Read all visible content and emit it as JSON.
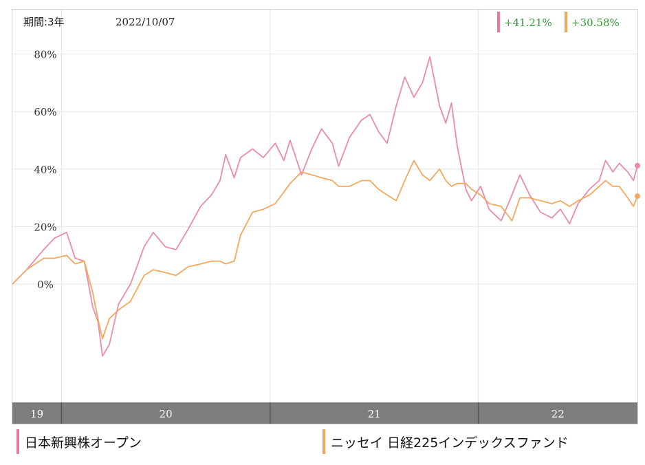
{
  "header": {
    "period_label": "期間:3年",
    "date": "2022/10/07"
  },
  "badges": [
    {
      "text": "+41.21%",
      "color": "#e8789b"
    },
    {
      "text": "+30.58%",
      "color": "#f2a65a"
    }
  ],
  "colors": {
    "series_pink": "#ee8aa9",
    "series_orange": "#f5a85c",
    "badge_text": "#2e9e2e",
    "axis_band": "#7d7d7d"
  },
  "legend": [
    {
      "label": "日本新興株オープン",
      "color": "#e8789b"
    },
    {
      "label": "ニッセイ 日経225インデックスファンド",
      "color": "#f2a65a"
    }
  ],
  "chart_data": {
    "type": "line",
    "title": "",
    "xlabel": "",
    "ylabel": "",
    "x_start": "2019-10-07",
    "x_end": "2022-10-07",
    "x_tick_labels": [
      "19",
      "20",
      "21",
      "22"
    ],
    "y_ticks": [
      0,
      20,
      40,
      60,
      80
    ],
    "ylim": [
      -35,
      95
    ],
    "grid": true,
    "series": [
      {
        "name": "日本新興株オープン",
        "color": "#ee8aa9",
        "final_change": "+41.21%",
        "points": [
          [
            "2019-10-07",
            0
          ],
          [
            "2019-11-01",
            5
          ],
          [
            "2019-12-01",
            12
          ],
          [
            "2019-12-20",
            16
          ],
          [
            "2020-01-10",
            18
          ],
          [
            "2020-01-25",
            9
          ],
          [
            "2020-02-10",
            8
          ],
          [
            "2020-02-25",
            -8
          ],
          [
            "2020-03-05",
            -13
          ],
          [
            "2020-03-13",
            -25
          ],
          [
            "2020-03-25",
            -21
          ],
          [
            "2020-04-10",
            -7
          ],
          [
            "2020-05-01",
            0
          ],
          [
            "2020-05-25",
            13
          ],
          [
            "2020-06-10",
            18
          ],
          [
            "2020-07-01",
            13
          ],
          [
            "2020-07-20",
            12
          ],
          [
            "2020-08-10",
            19
          ],
          [
            "2020-09-01",
            27
          ],
          [
            "2020-09-20",
            31
          ],
          [
            "2020-10-05",
            36
          ],
          [
            "2020-10-15",
            45
          ],
          [
            "2020-10-30",
            37
          ],
          [
            "2020-11-10",
            44
          ],
          [
            "2020-12-01",
            47
          ],
          [
            "2020-12-20",
            44
          ],
          [
            "2021-01-10",
            49
          ],
          [
            "2021-01-25",
            43
          ],
          [
            "2021-02-05",
            50
          ],
          [
            "2021-02-25",
            38
          ],
          [
            "2021-03-15",
            47
          ],
          [
            "2021-04-01",
            54
          ],
          [
            "2021-04-20",
            49
          ],
          [
            "2021-05-01",
            41
          ],
          [
            "2021-05-20",
            51
          ],
          [
            "2021-06-10",
            57
          ],
          [
            "2021-06-25",
            59
          ],
          [
            "2021-07-10",
            53
          ],
          [
            "2021-07-25",
            49
          ],
          [
            "2021-08-10",
            62
          ],
          [
            "2021-08-25",
            72
          ],
          [
            "2021-09-10",
            65
          ],
          [
            "2021-09-25",
            70
          ],
          [
            "2021-10-08",
            79
          ],
          [
            "2021-10-25",
            62
          ],
          [
            "2021-11-05",
            56
          ],
          [
            "2021-11-15",
            63
          ],
          [
            "2021-11-25",
            48
          ],
          [
            "2021-12-10",
            33
          ],
          [
            "2021-12-20",
            29
          ],
          [
            "2022-01-05",
            34
          ],
          [
            "2022-01-20",
            26
          ],
          [
            "2022-02-10",
            22
          ],
          [
            "2022-03-01",
            31
          ],
          [
            "2022-03-15",
            38
          ],
          [
            "2022-04-01",
            31
          ],
          [
            "2022-04-20",
            25
          ],
          [
            "2022-05-10",
            23
          ],
          [
            "2022-05-25",
            26
          ],
          [
            "2022-06-10",
            21
          ],
          [
            "2022-06-25",
            28
          ],
          [
            "2022-07-15",
            33
          ],
          [
            "2022-08-01",
            36
          ],
          [
            "2022-08-12",
            43
          ],
          [
            "2022-08-25",
            39
          ],
          [
            "2022-09-05",
            42
          ],
          [
            "2022-09-20",
            39
          ],
          [
            "2022-09-30",
            36
          ],
          [
            "2022-10-07",
            41.21
          ]
        ]
      },
      {
        "name": "ニッセイ 日経225インデックスファンド",
        "color": "#f5a85c",
        "final_change": "+30.58%",
        "points": [
          [
            "2019-10-07",
            0
          ],
          [
            "2019-11-01",
            5
          ],
          [
            "2019-12-01",
            9
          ],
          [
            "2019-12-20",
            9
          ],
          [
            "2020-01-10",
            10
          ],
          [
            "2020-01-25",
            7
          ],
          [
            "2020-02-10",
            8
          ],
          [
            "2020-02-25",
            -3
          ],
          [
            "2020-03-05",
            -12
          ],
          [
            "2020-03-13",
            -19
          ],
          [
            "2020-03-25",
            -12
          ],
          [
            "2020-04-10",
            -9
          ],
          [
            "2020-05-01",
            -6
          ],
          [
            "2020-05-25",
            3
          ],
          [
            "2020-06-10",
            5
          ],
          [
            "2020-07-01",
            4
          ],
          [
            "2020-07-20",
            3
          ],
          [
            "2020-08-10",
            6
          ],
          [
            "2020-09-01",
            7
          ],
          [
            "2020-09-20",
            8
          ],
          [
            "2020-10-05",
            8
          ],
          [
            "2020-10-15",
            7
          ],
          [
            "2020-10-30",
            8
          ],
          [
            "2020-11-10",
            17
          ],
          [
            "2020-12-01",
            25
          ],
          [
            "2020-12-20",
            26
          ],
          [
            "2021-01-10",
            28
          ],
          [
            "2021-01-25",
            32
          ],
          [
            "2021-02-05",
            35
          ],
          [
            "2021-02-25",
            39
          ],
          [
            "2021-03-15",
            38
          ],
          [
            "2021-04-01",
            37
          ],
          [
            "2021-04-20",
            36
          ],
          [
            "2021-05-01",
            34
          ],
          [
            "2021-05-20",
            34
          ],
          [
            "2021-06-10",
            36
          ],
          [
            "2021-06-25",
            36
          ],
          [
            "2021-07-10",
            33
          ],
          [
            "2021-07-25",
            31
          ],
          [
            "2021-08-10",
            29
          ],
          [
            "2021-08-25",
            36
          ],
          [
            "2021-09-10",
            43
          ],
          [
            "2021-09-25",
            38
          ],
          [
            "2021-10-08",
            36
          ],
          [
            "2021-10-25",
            40
          ],
          [
            "2021-11-05",
            36
          ],
          [
            "2021-11-15",
            34
          ],
          [
            "2021-11-25",
            35
          ],
          [
            "2021-12-10",
            35
          ],
          [
            "2021-12-20",
            33
          ],
          [
            "2022-01-05",
            31
          ],
          [
            "2022-01-20",
            28
          ],
          [
            "2022-02-10",
            27
          ],
          [
            "2022-03-01",
            22
          ],
          [
            "2022-03-15",
            30
          ],
          [
            "2022-04-01",
            30
          ],
          [
            "2022-04-20",
            29
          ],
          [
            "2022-05-10",
            28
          ],
          [
            "2022-05-25",
            29
          ],
          [
            "2022-06-10",
            27
          ],
          [
            "2022-06-25",
            29
          ],
          [
            "2022-07-15",
            31
          ],
          [
            "2022-08-01",
            34
          ],
          [
            "2022-08-12",
            36
          ],
          [
            "2022-08-25",
            34
          ],
          [
            "2022-09-05",
            34
          ],
          [
            "2022-09-20",
            30
          ],
          [
            "2022-09-30",
            27
          ],
          [
            "2022-10-07",
            30.58
          ]
        ]
      }
    ]
  }
}
